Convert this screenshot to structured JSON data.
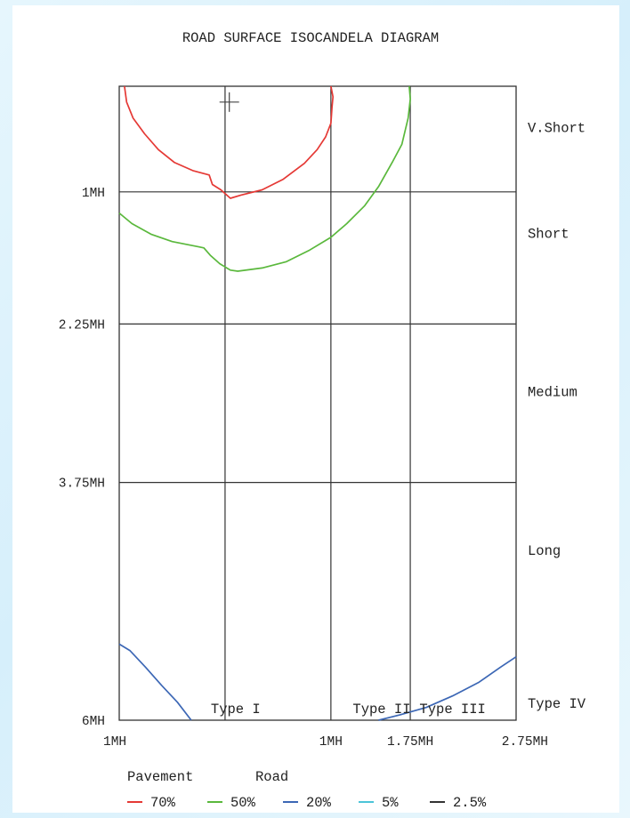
{
  "colors": {
    "red": "#e53935",
    "green": "#5ab83c",
    "blue": "#3c67b5",
    "cyan": "#4cc4d8",
    "black": "#333333",
    "grid": "#333333"
  },
  "chart_data": {
    "type": "line",
    "title": "ROAD SURFACE ISOCANDELA DIAGRAM",
    "xlim": [
      -1,
      2.75
    ],
    "ylim": [
      0,
      6
    ],
    "grid": true,
    "legend_position": "bottom",
    "x_ticks": [
      {
        "value": -1,
        "label": "1MH"
      },
      {
        "value": 1,
        "label": "1MH"
      },
      {
        "value": 1.75,
        "label": "1.75MH"
      },
      {
        "value": 2.75,
        "label": "2.75MH"
      }
    ],
    "x_gridlines": [
      0,
      1,
      1.75
    ],
    "y_ticks": [
      {
        "value": 1,
        "label": "1MH"
      },
      {
        "value": 2.25,
        "label": "2.25MH"
      },
      {
        "value": 3.75,
        "label": "3.75MH"
      },
      {
        "value": 6,
        "label": "6MH"
      }
    ],
    "y_gridlines": [
      1,
      2.25,
      3.75
    ],
    "distance_labels": [
      {
        "value": 0.5,
        "label": "V.Short"
      },
      {
        "value": 1.5,
        "label": "Short"
      },
      {
        "value": 3.0,
        "label": "Medium"
      },
      {
        "value": 4.5,
        "label": "Long"
      },
      {
        "value": 6.0,
        "label": "Type IV"
      }
    ],
    "type_labels": [
      {
        "value": 0.1,
        "label": "Type I"
      },
      {
        "value": 1.48,
        "label": "Type II"
      },
      {
        "value": 2.15,
        "label": "Type III"
      }
    ],
    "marker": {
      "x": 0.04,
      "y": 0.15
    },
    "legend_header": [
      "Pavement",
      "Road"
    ],
    "series": [
      {
        "name": "70%",
        "color_key": "red",
        "points": [
          [
            -0.95,
            0
          ],
          [
            -0.93,
            0.15
          ],
          [
            -0.87,
            0.3
          ],
          [
            -0.76,
            0.45
          ],
          [
            -0.63,
            0.6
          ],
          [
            -0.48,
            0.72
          ],
          [
            -0.3,
            0.8
          ],
          [
            -0.15,
            0.84
          ],
          [
            -0.12,
            0.93
          ],
          [
            -0.04,
            0.98
          ],
          [
            0.05,
            1.06
          ],
          [
            0.15,
            1.03
          ],
          [
            0.35,
            0.98
          ],
          [
            0.55,
            0.88
          ],
          [
            0.75,
            0.73
          ],
          [
            0.87,
            0.6
          ],
          [
            0.95,
            0.48
          ],
          [
            1.0,
            0.35
          ],
          [
            1.01,
            0.2
          ],
          [
            1.02,
            0.1
          ],
          [
            1.0,
            0
          ]
        ]
      },
      {
        "name": "50%",
        "color_key": "green",
        "points": [
          [
            -1,
            1.2
          ],
          [
            -0.88,
            1.3
          ],
          [
            -0.7,
            1.4
          ],
          [
            -0.5,
            1.47
          ],
          [
            -0.25,
            1.52
          ],
          [
            -0.2,
            1.53
          ],
          [
            -0.14,
            1.6
          ],
          [
            -0.05,
            1.68
          ],
          [
            0.05,
            1.74
          ],
          [
            0.12,
            1.75
          ],
          [
            0.35,
            1.72
          ],
          [
            0.58,
            1.66
          ],
          [
            0.8,
            1.55
          ],
          [
            1.0,
            1.43
          ],
          [
            1.15,
            1.3
          ],
          [
            1.32,
            1.13
          ],
          [
            1.45,
            0.95
          ],
          [
            1.58,
            0.72
          ],
          [
            1.67,
            0.55
          ],
          [
            1.73,
            0.3
          ],
          [
            1.75,
            0.12
          ],
          [
            1.74,
            0
          ]
        ]
      },
      {
        "name": "20%",
        "color_key": "blue",
        "points": [
          [
            -1,
            5.28
          ],
          [
            -0.9,
            5.34
          ],
          [
            -0.75,
            5.5
          ],
          [
            -0.6,
            5.67
          ],
          [
            -0.45,
            5.83
          ],
          [
            -0.32,
            6
          ],
          [
            null,
            null
          ],
          [
            1.45,
            6
          ],
          [
            1.65,
            5.95
          ],
          [
            1.9,
            5.88
          ],
          [
            2.15,
            5.77
          ],
          [
            2.4,
            5.64
          ],
          [
            2.6,
            5.5
          ],
          [
            2.75,
            5.4
          ]
        ]
      },
      {
        "name": "5%",
        "color_key": "cyan",
        "points": []
      },
      {
        "name": "2.5%",
        "color_key": "black",
        "points": []
      }
    ]
  }
}
